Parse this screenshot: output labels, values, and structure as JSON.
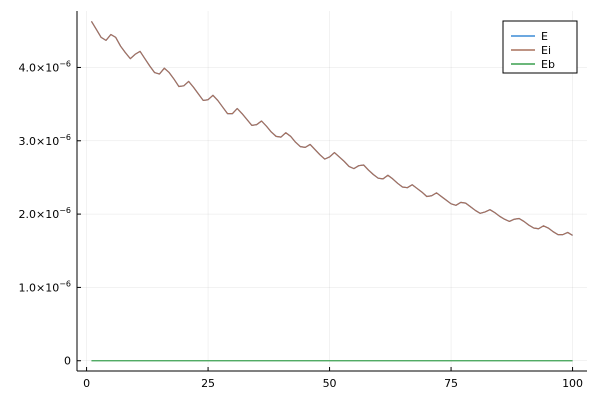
{
  "chart_data": {
    "type": "line",
    "title": "",
    "xlabel": "",
    "ylabel": "",
    "xlim": [
      -1.97,
      102.97
    ],
    "ylim": [
      -1.4e-07,
      4.77e-06
    ],
    "grid": true,
    "legend_position": "top-right",
    "x_ticks": [
      {
        "value": 0,
        "label": "0"
      },
      {
        "value": 25,
        "label": "25"
      },
      {
        "value": 50,
        "label": "50"
      },
      {
        "value": 75,
        "label": "75"
      },
      {
        "value": 100,
        "label": "100"
      }
    ],
    "y_ticks": [
      {
        "value": 0,
        "label": "0",
        "mantissa": "0",
        "exponent": ""
      },
      {
        "value": 1e-06,
        "label": "1.0×10⁻⁶",
        "mantissa": "1.0×10",
        "exponent": "−6"
      },
      {
        "value": 2e-06,
        "label": "2.0×10⁻⁶",
        "mantissa": "2.0×10",
        "exponent": "−6"
      },
      {
        "value": 3e-06,
        "label": "3.0×10⁻⁶",
        "mantissa": "3.0×10",
        "exponent": "−6"
      },
      {
        "value": 4e-06,
        "label": "4.0×10⁻⁶",
        "mantissa": "4.0×10",
        "exponent": "−6"
      }
    ],
    "series": [
      {
        "name": "E",
        "color": "#3b8bd6",
        "x": [
          1,
          2,
          3,
          4,
          5,
          6,
          7,
          8,
          9,
          10,
          11,
          12,
          13,
          14,
          15,
          16,
          17,
          18,
          19,
          20,
          21,
          22,
          23,
          24,
          25,
          26,
          27,
          28,
          29,
          30,
          31,
          32,
          33,
          34,
          35,
          36,
          37,
          38,
          39,
          40,
          41,
          42,
          43,
          44,
          45,
          46,
          47,
          48,
          49,
          50,
          51,
          52,
          53,
          54,
          55,
          56,
          57,
          58,
          59,
          60,
          61,
          62,
          63,
          64,
          65,
          66,
          67,
          68,
          69,
          70,
          71,
          72,
          73,
          74,
          75,
          76,
          77,
          78,
          79,
          80,
          81,
          82,
          83,
          84,
          85,
          86,
          87,
          88,
          89,
          90,
          91,
          92,
          93,
          94,
          95,
          96,
          97,
          98,
          99,
          100
        ],
        "y": [
          4.63e-06,
          4.52e-06,
          4.41e-06,
          4.37e-06,
          4.45e-06,
          4.41e-06,
          4.29e-06,
          4.2e-06,
          4.12e-06,
          4.18e-06,
          4.22e-06,
          4.12e-06,
          4.02e-06,
          3.93e-06,
          3.91e-06,
          3.99e-06,
          3.93e-06,
          3.84e-06,
          3.74e-06,
          3.75e-06,
          3.81e-06,
          3.73e-06,
          3.64e-06,
          3.55e-06,
          3.56e-06,
          3.62e-06,
          3.55e-06,
          3.46e-06,
          3.37e-06,
          3.37e-06,
          3.44e-06,
          3.37e-06,
          3.29e-06,
          3.21e-06,
          3.22e-06,
          3.27e-06,
          3.2e-06,
          3.12e-06,
          3.06e-06,
          3.05e-06,
          3.11e-06,
          3.06e-06,
          2.98e-06,
          2.92e-06,
          2.91e-06,
          2.95e-06,
          2.88e-06,
          2.81e-06,
          2.75e-06,
          2.78e-06,
          2.84e-06,
          2.78e-06,
          2.72e-06,
          2.65e-06,
          2.62e-06,
          2.66e-06,
          2.67e-06,
          2.6e-06,
          2.54e-06,
          2.49e-06,
          2.48e-06,
          2.53e-06,
          2.48e-06,
          2.42e-06,
          2.37e-06,
          2.36e-06,
          2.4e-06,
          2.35e-06,
          2.3e-06,
          2.24e-06,
          2.25e-06,
          2.29e-06,
          2.24e-06,
          2.19e-06,
          2.14e-06,
          2.12e-06,
          2.16e-06,
          2.15e-06,
          2.1e-06,
          2.05e-06,
          2.01e-06,
          2.03e-06,
          2.06e-06,
          2.02e-06,
          1.97e-06,
          1.93e-06,
          1.9e-06,
          1.93e-06,
          1.94e-06,
          1.9e-06,
          1.85e-06,
          1.81e-06,
          1.8e-06,
          1.84e-06,
          1.81e-06,
          1.76e-06,
          1.72e-06,
          1.72e-06,
          1.75e-06,
          1.71e-06
        ]
      },
      {
        "name": "Ei",
        "color": "#a8705c",
        "x": [
          1,
          2,
          3,
          4,
          5,
          6,
          7,
          8,
          9,
          10,
          11,
          12,
          13,
          14,
          15,
          16,
          17,
          18,
          19,
          20,
          21,
          22,
          23,
          24,
          25,
          26,
          27,
          28,
          29,
          30,
          31,
          32,
          33,
          34,
          35,
          36,
          37,
          38,
          39,
          40,
          41,
          42,
          43,
          44,
          45,
          46,
          47,
          48,
          49,
          50,
          51,
          52,
          53,
          54,
          55,
          56,
          57,
          58,
          59,
          60,
          61,
          62,
          63,
          64,
          65,
          66,
          67,
          68,
          69,
          70,
          71,
          72,
          73,
          74,
          75,
          76,
          77,
          78,
          79,
          80,
          81,
          82,
          83,
          84,
          85,
          86,
          87,
          88,
          89,
          90,
          91,
          92,
          93,
          94,
          95,
          96,
          97,
          98,
          99,
          100
        ],
        "y": [
          4.63e-06,
          4.52e-06,
          4.41e-06,
          4.37e-06,
          4.45e-06,
          4.41e-06,
          4.29e-06,
          4.2e-06,
          4.12e-06,
          4.18e-06,
          4.22e-06,
          4.12e-06,
          4.02e-06,
          3.93e-06,
          3.91e-06,
          3.99e-06,
          3.93e-06,
          3.84e-06,
          3.74e-06,
          3.75e-06,
          3.81e-06,
          3.73e-06,
          3.64e-06,
          3.55e-06,
          3.56e-06,
          3.62e-06,
          3.55e-06,
          3.46e-06,
          3.37e-06,
          3.37e-06,
          3.44e-06,
          3.37e-06,
          3.29e-06,
          3.21e-06,
          3.22e-06,
          3.27e-06,
          3.2e-06,
          3.12e-06,
          3.06e-06,
          3.05e-06,
          3.11e-06,
          3.06e-06,
          2.98e-06,
          2.92e-06,
          2.91e-06,
          2.95e-06,
          2.88e-06,
          2.81e-06,
          2.75e-06,
          2.78e-06,
          2.84e-06,
          2.78e-06,
          2.72e-06,
          2.65e-06,
          2.62e-06,
          2.66e-06,
          2.67e-06,
          2.6e-06,
          2.54e-06,
          2.49e-06,
          2.48e-06,
          2.53e-06,
          2.48e-06,
          2.42e-06,
          2.37e-06,
          2.36e-06,
          2.4e-06,
          2.35e-06,
          2.3e-06,
          2.24e-06,
          2.25e-06,
          2.29e-06,
          2.24e-06,
          2.19e-06,
          2.14e-06,
          2.12e-06,
          2.16e-06,
          2.15e-06,
          2.1e-06,
          2.05e-06,
          2.01e-06,
          2.03e-06,
          2.06e-06,
          2.02e-06,
          1.97e-06,
          1.93e-06,
          1.9e-06,
          1.93e-06,
          1.94e-06,
          1.9e-06,
          1.85e-06,
          1.81e-06,
          1.8e-06,
          1.84e-06,
          1.81e-06,
          1.76e-06,
          1.72e-06,
          1.72e-06,
          1.75e-06,
          1.71e-06
        ]
      },
      {
        "name": "Eb",
        "color": "#3a9f4f",
        "x": [
          1,
          100
        ],
        "y": [
          0,
          0
        ]
      }
    ]
  }
}
